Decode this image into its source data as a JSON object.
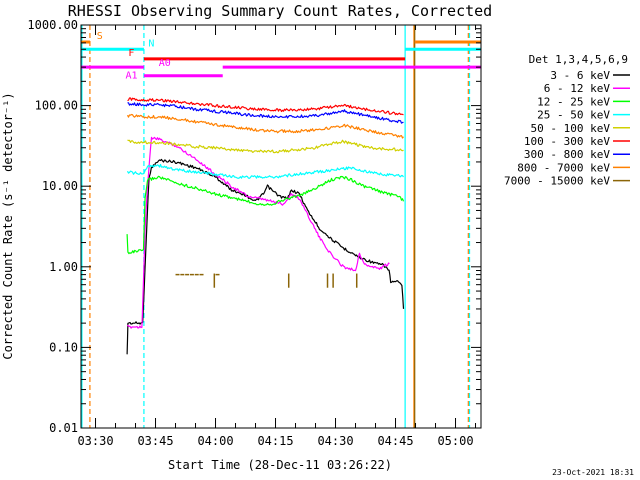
{
  "chart_data": {
    "type": "line",
    "title": "RHESSI Observing Summary Count Rates, Corrected",
    "xlabel": "Start Time (28-Dec-11 03:26:22)",
    "ylabel": "Corrected Count Rate (s⁻¹ detector⁻¹)",
    "x_start_min": 206.37,
    "xlim": [
      206.37,
      306.37
    ],
    "ylim": [
      0.01,
      1000
    ],
    "y_scale": "log",
    "x_ticks": [
      {
        "t": 210,
        "label": "03:30"
      },
      {
        "t": 225,
        "label": "03:45"
      },
      {
        "t": 240,
        "label": "04:00"
      },
      {
        "t": 255,
        "label": "04:15"
      },
      {
        "t": 270,
        "label": "04:30"
      },
      {
        "t": 285,
        "label": "04:45"
      },
      {
        "t": 300,
        "label": "05:00"
      }
    ],
    "y_ticks": [
      {
        "v": 0.01,
        "label": "0.01"
      },
      {
        "v": 0.1,
        "label": "0.10"
      },
      {
        "v": 1,
        "label": "1.00"
      },
      {
        "v": 10,
        "label": "10.00"
      },
      {
        "v": 100,
        "label": "100.00"
      },
      {
        "v": 1000,
        "label": "1000.00"
      }
    ],
    "legend_title": "Det 1,3,4,5,6,9",
    "legend_position": "right",
    "series": [
      {
        "name": "3 - 6 keV",
        "color": "#000000",
        "points": [
          [
            217.9,
            0.08
          ],
          [
            218.1,
            0.2
          ],
          [
            221.4,
            0.2
          ],
          [
            221.8,
            0.2
          ],
          [
            222.9,
            4
          ],
          [
            223.4,
            13
          ],
          [
            224,
            17
          ],
          [
            226,
            21
          ],
          [
            230,
            20
          ],
          [
            235,
            17
          ],
          [
            240,
            13
          ],
          [
            244,
            9
          ],
          [
            247,
            8
          ],
          [
            250,
            6.5
          ],
          [
            252,
            8
          ],
          [
            253,
            10
          ],
          [
            254,
            9
          ],
          [
            256,
            7.5
          ],
          [
            258,
            7
          ],
          [
            259,
            9
          ],
          [
            261,
            8
          ],
          [
            263,
            5
          ],
          [
            266,
            3
          ],
          [
            269,
            2.2
          ],
          [
            272,
            1.7
          ],
          [
            274,
            1.5
          ],
          [
            276,
            1.3
          ],
          [
            278,
            1.2
          ],
          [
            280,
            1.1
          ],
          [
            282,
            1.05
          ],
          [
            283.4,
            0.9
          ],
          [
            283.8,
            0.65
          ],
          [
            285.5,
            0.65
          ],
          [
            286.6,
            0.6
          ],
          [
            287,
            0.3
          ]
        ]
      },
      {
        "name": "6 - 12 keV",
        "color": "#ff00ff",
        "points": [
          [
            217.9,
            0.18
          ],
          [
            221.6,
            0.18
          ],
          [
            222.4,
            3
          ],
          [
            223,
            10
          ],
          [
            224,
            40
          ],
          [
            226,
            38
          ],
          [
            230,
            32
          ],
          [
            235,
            22
          ],
          [
            240,
            14
          ],
          [
            244,
            10
          ],
          [
            248,
            7.5
          ],
          [
            251,
            7
          ],
          [
            254,
            6.5
          ],
          [
            257,
            6
          ],
          [
            259,
            8
          ],
          [
            261,
            7
          ],
          [
            263,
            4.5
          ],
          [
            266,
            2.3
          ],
          [
            269,
            1.4
          ],
          [
            272,
            1
          ],
          [
            275,
            0.9
          ],
          [
            276,
            1.5
          ],
          [
            277,
            1.1
          ],
          [
            279,
            1
          ],
          [
            281,
            0.95
          ],
          [
            283.5,
            1.1
          ]
        ]
      },
      {
        "name": "12 - 25 keV",
        "color": "#00ff00",
        "points": [
          [
            217.9,
            2.5
          ],
          [
            218.1,
            1.5
          ],
          [
            222,
            1.6
          ],
          [
            222.4,
            7
          ],
          [
            223,
            12
          ],
          [
            226,
            13
          ],
          [
            230,
            11
          ],
          [
            235,
            9.5
          ],
          [
            240,
            8
          ],
          [
            245,
            7
          ],
          [
            248,
            6.5
          ],
          [
            251,
            6
          ],
          [
            254,
            6
          ],
          [
            258,
            7
          ],
          [
            262,
            8
          ],
          [
            266,
            10
          ],
          [
            269,
            12
          ],
          [
            272,
            13
          ],
          [
            274,
            12
          ],
          [
            277,
            10
          ],
          [
            280,
            9
          ],
          [
            283,
            8
          ],
          [
            286,
            7.5
          ],
          [
            287,
            6.5
          ]
        ]
      },
      {
        "name": "25 - 50 keV",
        "color": "#00ffff",
        "points": [
          [
            218,
            15
          ],
          [
            222,
            14
          ],
          [
            223,
            18
          ],
          [
            226,
            18
          ],
          [
            230,
            16
          ],
          [
            235,
            15
          ],
          [
            240,
            14
          ],
          [
            245,
            13
          ],
          [
            250,
            13
          ],
          [
            255,
            13
          ],
          [
            260,
            14
          ],
          [
            265,
            15
          ],
          [
            270,
            16
          ],
          [
            274,
            17
          ],
          [
            278,
            15
          ],
          [
            282,
            14
          ],
          [
            286,
            13.5
          ],
          [
            287,
            13
          ]
        ]
      },
      {
        "name": "50 - 100 keV",
        "color": "#d0d000",
        "points": [
          [
            218,
            36
          ],
          [
            222,
            35
          ],
          [
            226,
            35
          ],
          [
            230,
            33
          ],
          [
            235,
            31
          ],
          [
            240,
            30
          ],
          [
            245,
            28
          ],
          [
            250,
            27
          ],
          [
            255,
            27
          ],
          [
            260,
            28
          ],
          [
            265,
            30
          ],
          [
            269,
            34
          ],
          [
            272,
            36
          ],
          [
            275,
            33
          ],
          [
            279,
            30
          ],
          [
            283,
            29
          ],
          [
            287,
            28
          ]
        ]
      },
      {
        "name": "100 - 300 keV",
        "color": "#ff0000",
        "points": [
          [
            218,
            120
          ],
          [
            222,
            118
          ],
          [
            226,
            117
          ],
          [
            230,
            113
          ],
          [
            235,
            105
          ],
          [
            240,
            100
          ],
          [
            245,
            95
          ],
          [
            250,
            90
          ],
          [
            255,
            88
          ],
          [
            260,
            88
          ],
          [
            265,
            91
          ],
          [
            269,
            96
          ],
          [
            272,
            100
          ],
          [
            275,
            95
          ],
          [
            279,
            88
          ],
          [
            283,
            82
          ],
          [
            287,
            77
          ]
        ]
      },
      {
        "name": "300 - 800 keV",
        "color": "#0000ff",
        "points": [
          [
            218,
            105
          ],
          [
            222,
            103
          ],
          [
            226,
            102
          ],
          [
            230,
            98
          ],
          [
            235,
            90
          ],
          [
            240,
            85
          ],
          [
            245,
            80
          ],
          [
            250,
            75
          ],
          [
            255,
            73
          ],
          [
            260,
            73
          ],
          [
            265,
            75
          ],
          [
            269,
            80
          ],
          [
            272,
            86
          ],
          [
            275,
            80
          ],
          [
            279,
            73
          ],
          [
            283,
            67
          ],
          [
            287,
            62
          ]
        ]
      },
      {
        "name": "800 - 7000 keV",
        "color": "#ff8000",
        "points": [
          [
            218,
            75
          ],
          [
            222,
            73
          ],
          [
            226,
            72
          ],
          [
            230,
            69
          ],
          [
            235,
            63
          ],
          [
            240,
            58
          ],
          [
            245,
            54
          ],
          [
            250,
            50
          ],
          [
            255,
            48
          ],
          [
            260,
            48
          ],
          [
            265,
            50
          ],
          [
            269,
            53
          ],
          [
            272,
            57
          ],
          [
            275,
            53
          ],
          [
            279,
            48
          ],
          [
            283,
            44
          ],
          [
            287,
            41
          ]
        ]
      },
      {
        "name": "7000 - 15000 keV",
        "color": "#8b6508",
        "points": []
      }
    ],
    "sparse_marks": {
      "series": "7000 - 15000 keV",
      "dashes": [
        [
          230,
          0.8
        ],
        [
          231.2,
          0.8
        ],
        [
          232.4,
          0.8
        ],
        [
          233.6,
          0.8
        ],
        [
          234.8,
          0.8
        ],
        [
          236,
          0.8
        ],
        [
          240,
          0.8
        ]
      ],
      "spikes": [
        [
          239.7,
          0.55
        ],
        [
          258.3,
          0.55
        ],
        [
          268,
          0.55
        ],
        [
          269.4,
          0.55
        ],
        [
          275.3,
          0.55
        ]
      ]
    },
    "flags": {
      "S": {
        "label": "S",
        "color": "#ff8000",
        "y": 615,
        "segments": [
          [
            206.37,
            208.6
          ],
          [
            289.8,
            306.37
          ]
        ]
      },
      "N": {
        "label": "N",
        "color": "#00ffff",
        "y": 500,
        "segments": [
          [
            206.37,
            222.1
          ],
          [
            287.4,
            306.37
          ]
        ]
      },
      "F": {
        "label": "F",
        "color": "#ff0000",
        "y": 380,
        "segments": [
          [
            222.1,
            287.4
          ]
        ]
      },
      "A0": {
        "label": "A0",
        "color": "#ff00ff",
        "y": 300,
        "segments": [
          [
            206.37,
            222.1
          ],
          [
            241.8,
            306.37
          ]
        ]
      },
      "A1": {
        "label": "A1",
        "color": "#ff00ff",
        "y": 235,
        "segments": [
          [
            222.1,
            241.8
          ]
        ]
      }
    },
    "vertical_lines": [
      {
        "t": 206.6,
        "color": "#00ffff",
        "style": "solid"
      },
      {
        "t": 208.6,
        "color": "#ff8000",
        "style": "dashed"
      },
      {
        "t": 222.1,
        "color": "#00ffff",
        "style": "dashed"
      },
      {
        "t": 287.4,
        "color": "#00ffff",
        "style": "solid"
      },
      {
        "t": 289.6,
        "color": "#ff8000",
        "style": "solid"
      },
      {
        "t": 289.8,
        "color": "#8b6508",
        "style": "solid"
      },
      {
        "t": 303.2,
        "color": "#ff8000",
        "style": "dashed"
      },
      {
        "t": 303.5,
        "color": "#00ffff",
        "style": "dashed"
      }
    ]
  },
  "timestamp": "23-Oct-2021 18:31"
}
